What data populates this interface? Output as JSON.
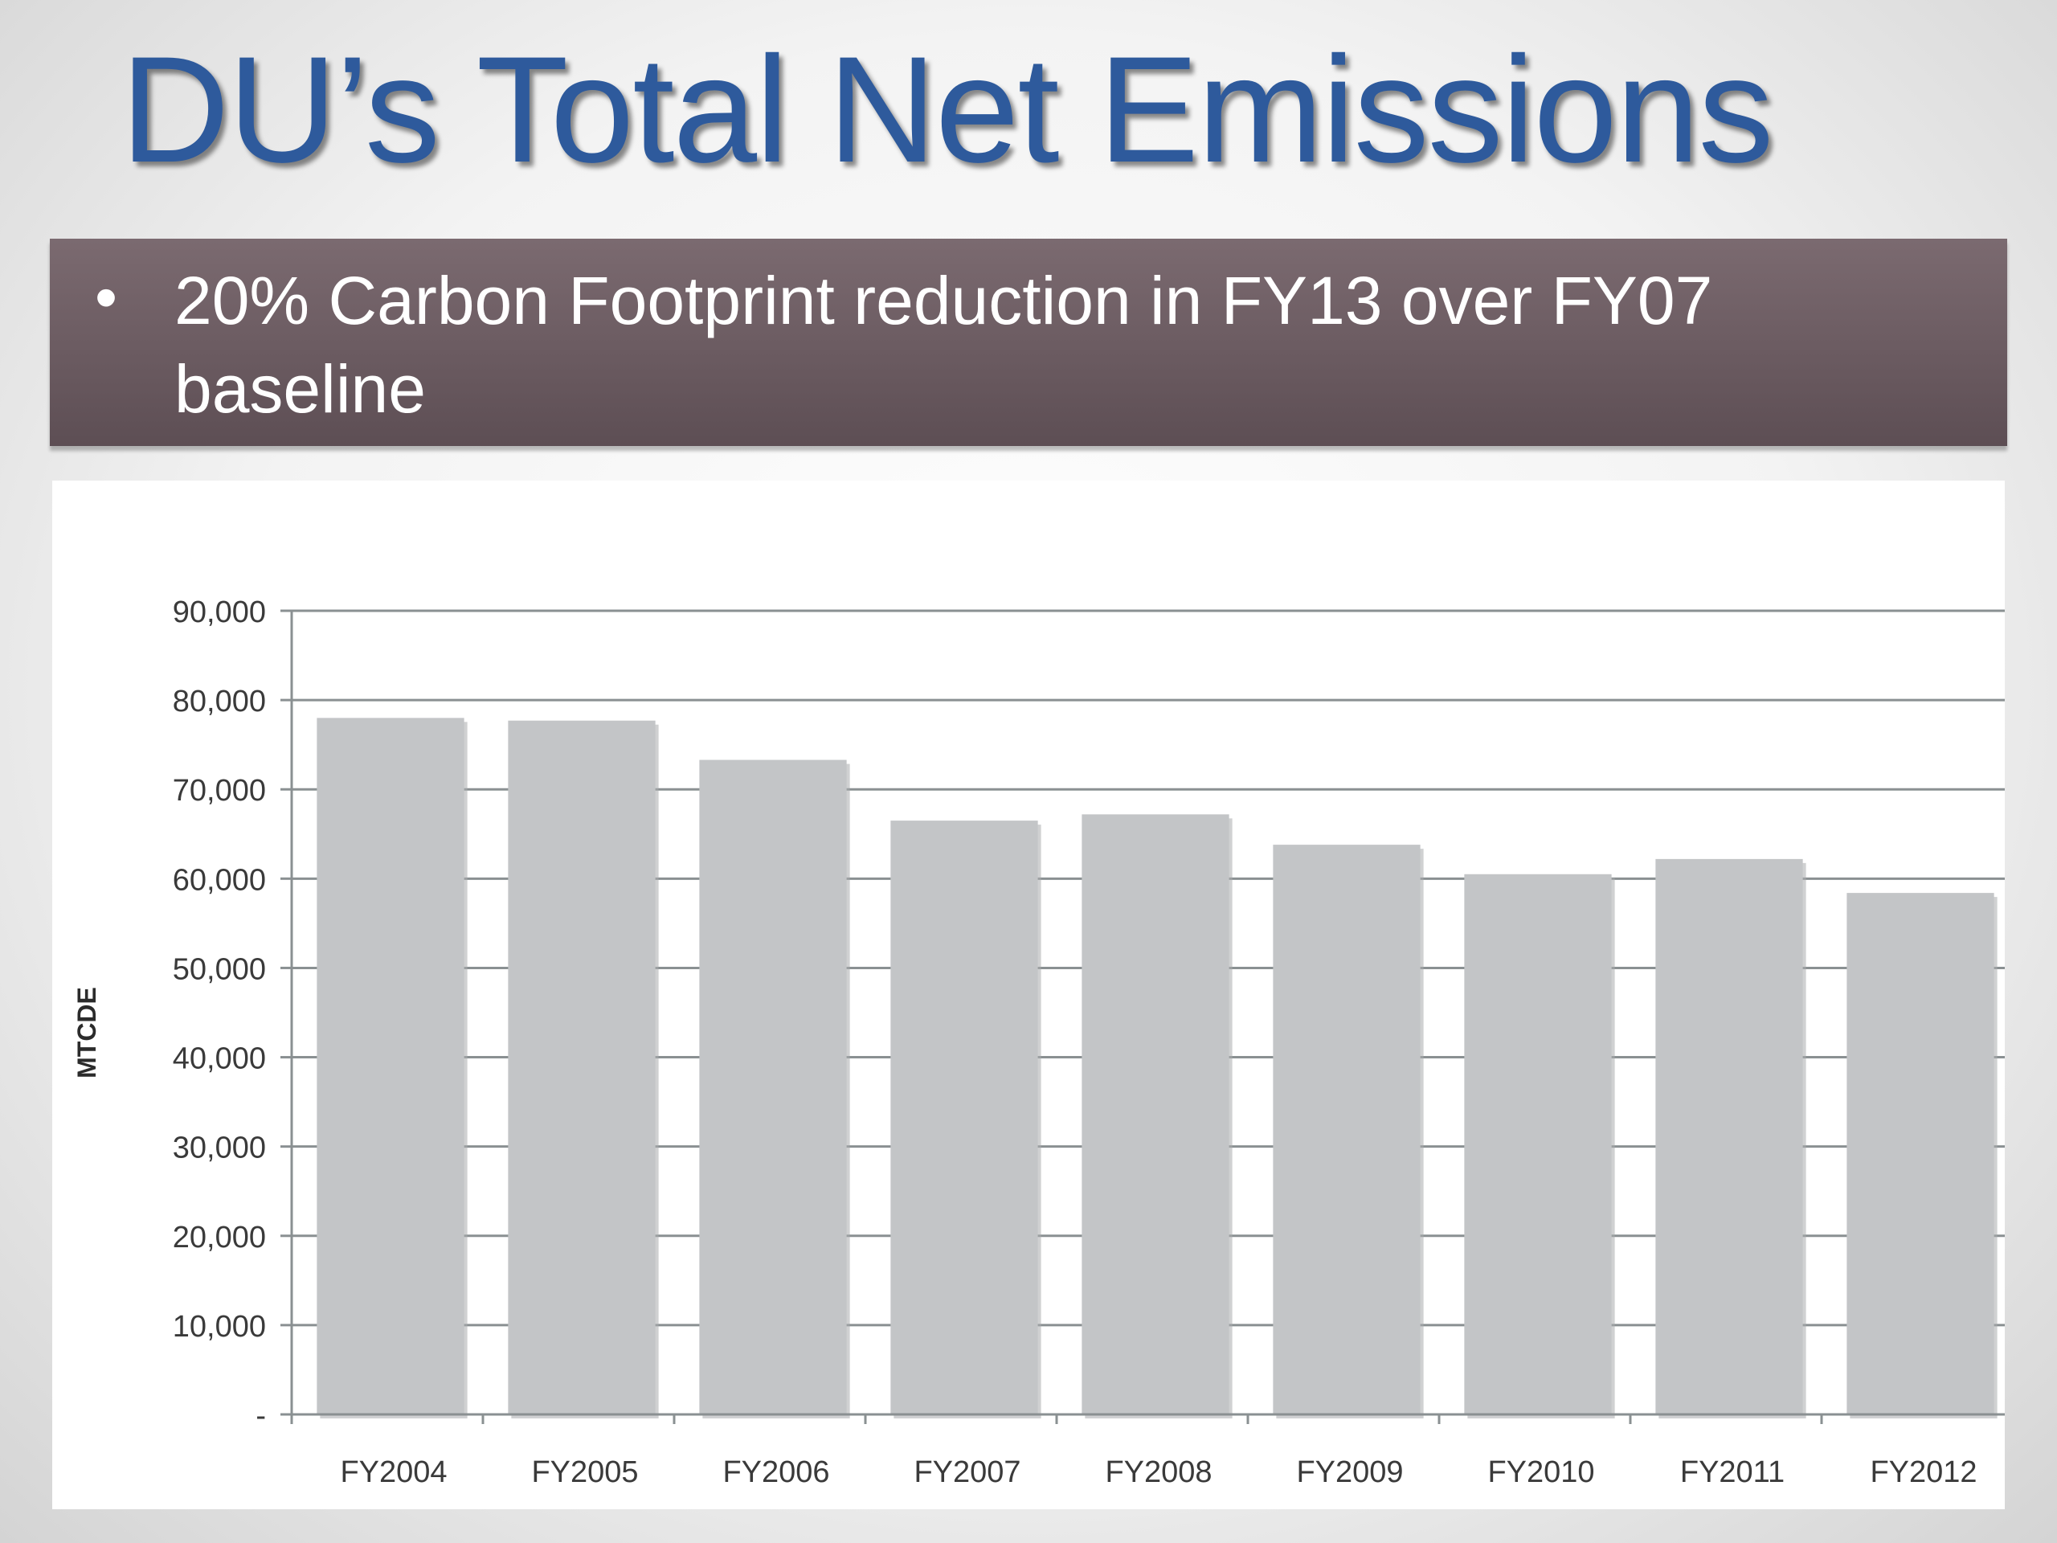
{
  "slide": {
    "title": "DU’s Total Net Emissions",
    "bullet_text": "20% Carbon Footprint reduction in FY13 over FY07 baseline"
  },
  "colors": {
    "title": "#2e5a9c",
    "band": "#6b5b61",
    "bar": "#c3c5c7",
    "gridline": "#8a9092"
  },
  "chart_data": {
    "type": "bar",
    "categories": [
      "FY2004",
      "FY2005",
      "FY2006",
      "FY2007",
      "FY2008",
      "FY2009",
      "FY2010",
      "FY2011",
      "FY2012"
    ],
    "values": [
      78000,
      77700,
      73300,
      66500,
      67200,
      63800,
      60500,
      62200,
      58400
    ],
    "ylabel": "MTCDE",
    "ylim": [
      0,
      90000
    ],
    "yticks": [
      0,
      10000,
      20000,
      30000,
      40000,
      50000,
      60000,
      70000,
      80000,
      90000
    ],
    "ytick_labels": [
      "-",
      "10,000",
      "20,000",
      "30,000",
      "40,000",
      "50,000",
      "60,000",
      "70,000",
      "80,000",
      "90,000"
    ],
    "grid": true,
    "legend": "none"
  }
}
